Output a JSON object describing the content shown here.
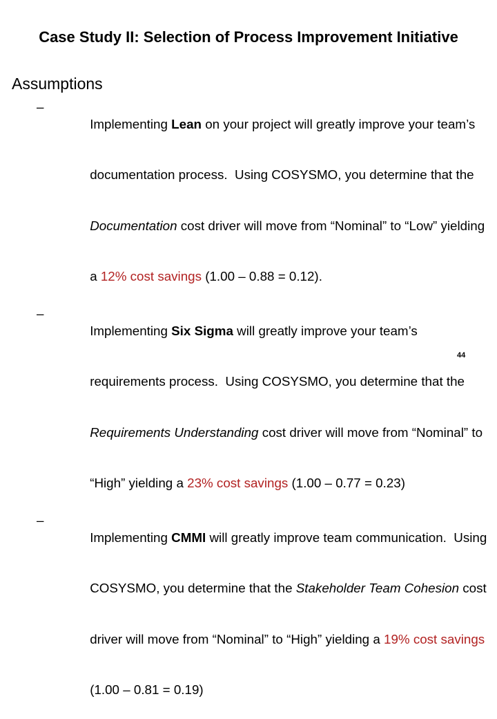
{
  "slide": {
    "title": "Case Study II: Selection of Process Improvement Initiative",
    "heading": "Assumptions",
    "bullet_marker": "–",
    "page_number": "44"
  },
  "colors": {
    "background": "#ffffff",
    "text": "#000000",
    "highlight_red": "#b22222"
  },
  "bullets": [
    {
      "name": "lean",
      "lines": [
        [
          {
            "text": "Implementing ",
            "style": "normal"
          },
          {
            "text": "Lean",
            "style": "bold"
          },
          {
            "text": " on your project will greatly improve your team’s",
            "style": "normal"
          }
        ],
        [
          {
            "text": "documentation process.  Using COSYSMO, you determine that the",
            "style": "normal"
          }
        ],
        [
          {
            "text": "Documentation",
            "style": "italic"
          },
          {
            "text": " cost driver will move from “Nominal” to “Low” yielding",
            "style": "normal"
          }
        ],
        [
          {
            "text": "a ",
            "style": "normal"
          },
          {
            "text": "12% cost savings",
            "style": "red"
          },
          {
            "text": " (1.00 – 0.88 = 0.12).",
            "style": "normal"
          }
        ]
      ]
    },
    {
      "name": "six-sigma",
      "lines": [
        [
          {
            "text": "Implementing ",
            "style": "normal"
          },
          {
            "text": "Six Sigma",
            "style": "bold"
          },
          {
            "text": " will greatly improve your team’s",
            "style": "normal"
          }
        ],
        [
          {
            "text": "requirements process.  Using COSYSMO, you determine that the",
            "style": "normal"
          }
        ],
        [
          {
            "text": "Requirements Understanding",
            "style": "italic"
          },
          {
            "text": " cost driver will move from “Nominal” to",
            "style": "normal"
          }
        ],
        [
          {
            "text": "“High” yielding a ",
            "style": "normal"
          },
          {
            "text": "23% cost savings",
            "style": "red"
          },
          {
            "text": " (1.00 – 0.77 = 0.23)",
            "style": "normal"
          }
        ]
      ]
    },
    {
      "name": "cmmi",
      "lines": [
        [
          {
            "text": "Implementing ",
            "style": "normal"
          },
          {
            "text": "CMMI",
            "style": "bold"
          },
          {
            "text": " will greatly improve team communication.  Using",
            "style": "normal"
          }
        ],
        [
          {
            "text": "COSYSMO, you determine that the ",
            "style": "normal"
          },
          {
            "text": "Stakeholder Team Cohesion",
            "style": "italic"
          },
          {
            "text": " cost",
            "style": "normal"
          }
        ],
        [
          {
            "text": "driver will move from “Nominal” to “High” yielding a ",
            "style": "normal"
          },
          {
            "text": "19% cost savings",
            "style": "red"
          }
        ],
        [
          {
            "text": "(1.00 – 0.81 = 0.19)",
            "style": "normal"
          }
        ]
      ]
    }
  ]
}
